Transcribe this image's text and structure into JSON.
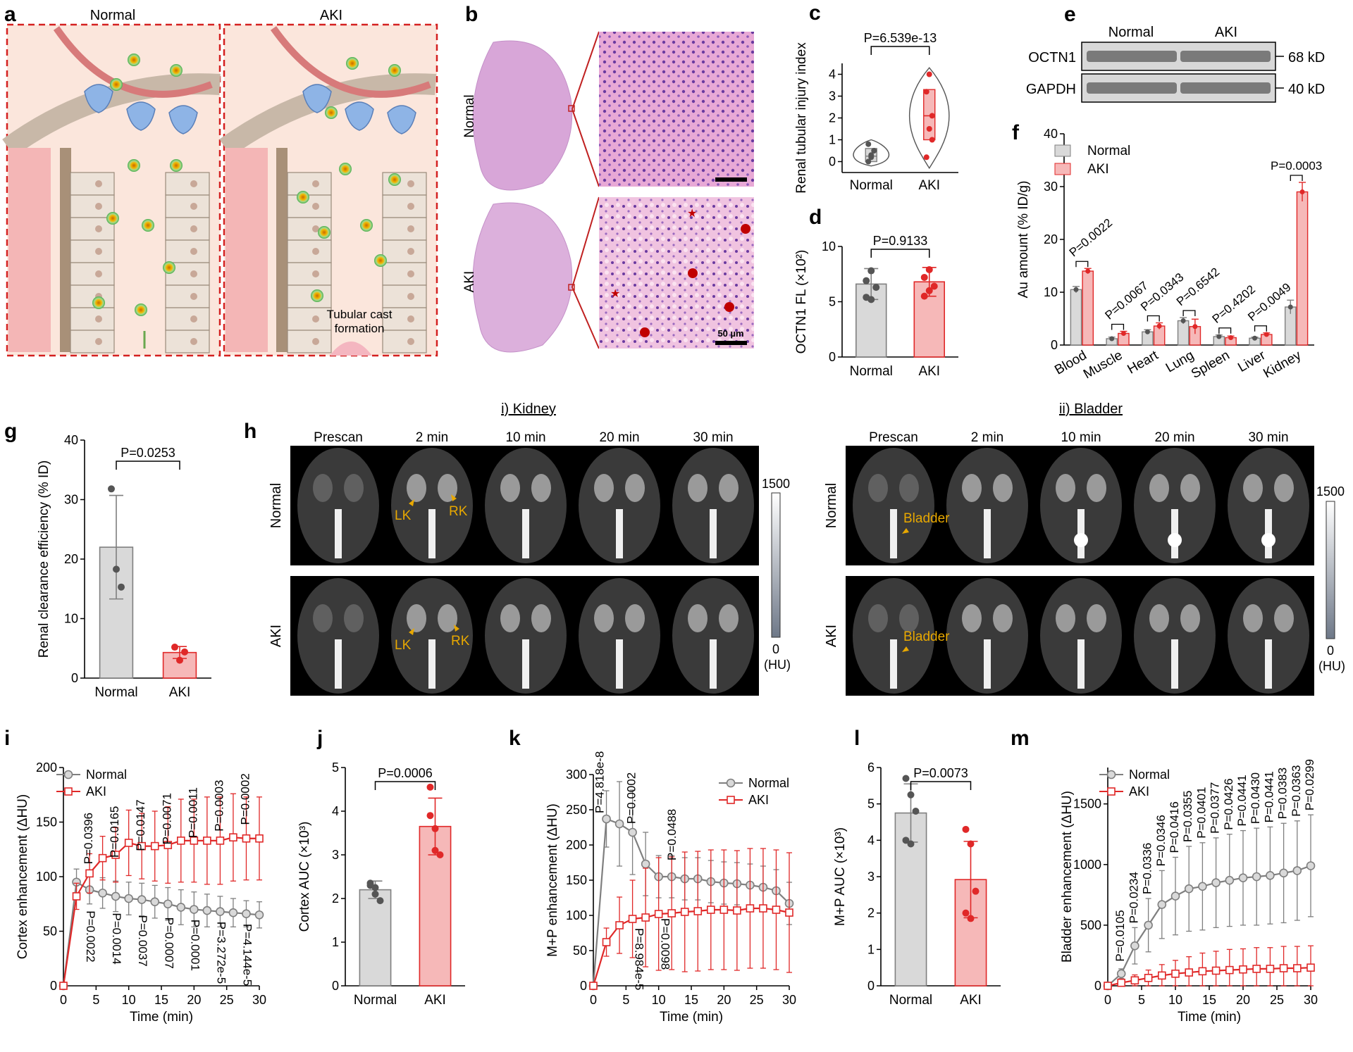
{
  "panel_letters": [
    "a",
    "b",
    "c",
    "d",
    "e",
    "f",
    "g",
    "h",
    "i",
    "j",
    "k",
    "l",
    "m"
  ],
  "colors": {
    "normal": "#7f7f7f",
    "normal_fill": "#d9d9d9",
    "aki": "#e02828",
    "aki_fill": "#f6b8b8",
    "gold": "#e8a800",
    "dash": "#d42020"
  },
  "panel_a": {
    "left_title": "Normal",
    "right_title": "AKI",
    "annotation": "Tubular cast\nformation"
  },
  "panel_b": {
    "row_labels": [
      "Normal",
      "AKI"
    ],
    "scale_bar": "50 µm"
  },
  "panel_e": {
    "headers": [
      "Normal",
      "AKI"
    ],
    "rows": [
      {
        "name": "OCTN1",
        "size": "68 kD"
      },
      {
        "name": "GAPDH",
        "size": "40 kD"
      }
    ]
  },
  "panel_h": {
    "kidney_title": "i) Kidney",
    "bladder_title": "ii) Bladder",
    "timepoints": [
      "Prescan",
      "2 min",
      "10 min",
      "20 min",
      "30 min"
    ],
    "row_labels": [
      "Normal",
      "AKI"
    ],
    "kidney_markers": [
      "LK",
      "RK"
    ],
    "bladder_marker": "Bladder",
    "colorbar_max": "1500",
    "colorbar_min": "0",
    "colorbar_unit": "(HU)"
  },
  "chart_data": [
    {
      "id": "c",
      "type": "violin",
      "ylabel": "Renal tubular injury index",
      "ylim": [
        -0.5,
        4.5
      ],
      "yticks": [
        0,
        1,
        2,
        3,
        4
      ],
      "categories": [
        "Normal",
        "AKI"
      ],
      "pvalue": "P=6.539e-13",
      "points": [
        [
          0,
          0.2,
          0.5,
          0.8,
          0.3
        ],
        [
          0.2,
          1.5,
          2.1,
          3.2,
          4.0,
          1.0
        ]
      ],
      "box": [
        [
          0,
          0.25,
          0.6
        ],
        [
          1.0,
          2.1,
          3.3
        ]
      ]
    },
    {
      "id": "d",
      "type": "bar",
      "ylabel": "OCTN1 FL (×10²)",
      "ylim": [
        0,
        10
      ],
      "yticks": [
        0,
        5,
        10
      ],
      "categories": [
        "Normal",
        "AKI"
      ],
      "means": [
        6.6,
        6.8
      ],
      "sd": [
        1.4,
        1.3
      ],
      "pvalue": "P=0.9133",
      "points": [
        [
          5.4,
          7.8,
          6.3,
          6.9,
          5.2
        ],
        [
          5.5,
          7.9,
          6.4,
          7.2,
          6.0
        ]
      ]
    },
    {
      "id": "f",
      "type": "grouped-bar",
      "ylabel": "Au amount (% ID/g)",
      "ylim": [
        0,
        40
      ],
      "yticks": [
        0,
        10,
        20,
        30,
        40
      ],
      "categories": [
        "Blood",
        "Muscle",
        "Heart",
        "Lung",
        "Spleen",
        "Liver",
        "Kidney"
      ],
      "series": [
        {
          "name": "Normal",
          "values": [
            10.5,
            1.2,
            2.5,
            4.6,
            1.6,
            1.3,
            7.2
          ],
          "sd": [
            0.6,
            0.3,
            0.4,
            0.6,
            0.3,
            0.2,
            1.3
          ]
        },
        {
          "name": "AKI",
          "values": [
            14.0,
            2.2,
            3.6,
            3.5,
            1.4,
            2.0,
            29.0
          ],
          "sd": [
            0.5,
            0.4,
            0.6,
            1.4,
            0.3,
            0.3,
            1.8
          ]
        }
      ],
      "pvalues": [
        "P=0.0022",
        "P=0.0067",
        "P=0.0343",
        "P=0.6542",
        "P=0.4202",
        "P=0.0049",
        "P=0.0003"
      ]
    },
    {
      "id": "g",
      "type": "bar",
      "ylabel": "Renal clearance efficiency (% ID)",
      "ylim": [
        0,
        40
      ],
      "yticks": [
        0,
        10,
        20,
        30,
        40
      ],
      "categories": [
        "Normal",
        "AKI"
      ],
      "means": [
        22.0,
        4.3
      ],
      "sd": [
        8.7,
        1.0
      ],
      "pvalue": "P=0.0253",
      "points": [
        [
          31.8,
          18.3,
          15.3
        ],
        [
          5.2,
          3.0,
          4.4
        ]
      ]
    },
    {
      "id": "i",
      "type": "line",
      "xlabel": "Time (min)",
      "ylabel": "Cortex enhancement (ΔHU)",
      "xlim": [
        0,
        30
      ],
      "ylim": [
        0,
        200
      ],
      "xticks": [
        0,
        5,
        10,
        15,
        20,
        25,
        30
      ],
      "yticks": [
        0,
        50,
        100,
        150,
        200
      ],
      "x": [
        0,
        2,
        4,
        6,
        8,
        10,
        12,
        14,
        16,
        18,
        20,
        22,
        24,
        26,
        28,
        30
      ],
      "series": [
        {
          "name": "Normal",
          "values": [
            0,
            95,
            88,
            85,
            82,
            80,
            79,
            77,
            75,
            72,
            70,
            69,
            68,
            67,
            66,
            65
          ],
          "sd": [
            0,
            12,
            13,
            14,
            14,
            15,
            15,
            15,
            15,
            16,
            16,
            15,
            14,
            13,
            12,
            12
          ]
        },
        {
          "name": "AKI",
          "values": [
            0,
            82,
            103,
            117,
            120,
            131,
            128,
            128,
            129,
            133,
            133,
            133,
            133,
            136,
            135,
            135
          ],
          "sd": [
            0,
            12,
            18,
            20,
            25,
            30,
            30,
            32,
            35,
            38,
            38,
            40,
            40,
            40,
            38,
            38
          ]
        }
      ],
      "pvalues_aki": [
        "P=0.0396",
        "P=0.0165",
        "P=0.0147",
        "P=0.0071",
        "P=0.0011",
        "P=0.0003",
        "P=0.0002"
      ],
      "pvalues_normal": [
        "P=0.0022",
        "P=0.0014",
        "P=0.0037",
        "P=0.0007",
        "P=0.0001",
        "P=3.272e-5",
        "P=4.144e-5"
      ]
    },
    {
      "id": "j",
      "type": "bar",
      "ylabel": "Cortex AUC (×10³)",
      "ylim": [
        0,
        5
      ],
      "yticks": [
        0,
        1,
        2,
        3,
        4,
        5
      ],
      "categories": [
        "Normal",
        "AKI"
      ],
      "means": [
        2.2,
        3.65
      ],
      "sd": [
        0.2,
        0.65
      ],
      "pvalue": "P=0.0006",
      "points": [
        [
          2.35,
          2.1,
          1.95,
          2.3,
          2.25
        ],
        [
          4.55,
          3.1,
          3.0,
          3.9,
          3.6
        ]
      ]
    },
    {
      "id": "k",
      "type": "line",
      "xlabel": "Time (min)",
      "ylabel": "M+P enhancement (ΔHU)",
      "xlim": [
        0,
        30
      ],
      "ylim": [
        0,
        300
      ],
      "xticks": [
        0,
        5,
        10,
        15,
        20,
        25,
        30
      ],
      "yticks": [
        0,
        50,
        100,
        150,
        200,
        250,
        300
      ],
      "x": [
        0,
        2,
        4,
        6,
        8,
        10,
        12,
        14,
        16,
        18,
        20,
        22,
        24,
        26,
        28,
        30
      ],
      "series": [
        {
          "name": "Normal",
          "values": [
            0,
            237,
            230,
            218,
            173,
            155,
            155,
            152,
            152,
            148,
            146,
            145,
            143,
            140,
            135,
            117
          ],
          "sd": [
            0,
            40,
            60,
            60,
            45,
            30,
            30,
            30,
            30,
            30,
            30,
            30,
            30,
            30,
            30,
            30
          ]
        },
        {
          "name": "AKI",
          "values": [
            0,
            62,
            86,
            95,
            97,
            102,
            103,
            105,
            106,
            108,
            108,
            107,
            110,
            110,
            108,
            104
          ],
          "sd": [
            0,
            20,
            40,
            55,
            70,
            80,
            80,
            85,
            85,
            85,
            85,
            85,
            85,
            85,
            85,
            85
          ]
        }
      ],
      "pvalues": [
        "P=4.818e-8",
        "P=8.984e-5",
        "P=0.0002",
        "P=0.0098",
        "P=0.0488"
      ]
    },
    {
      "id": "l",
      "type": "bar",
      "ylabel": "M+P AUC (×10³)",
      "ylim": [
        0,
        6
      ],
      "yticks": [
        0,
        1,
        2,
        3,
        4,
        5,
        6
      ],
      "categories": [
        "Normal",
        "AKI"
      ],
      "means": [
        4.75,
        2.92
      ],
      "sd": [
        0.8,
        1.05
      ],
      "pvalue": "P=0.0073",
      "points": [
        [
          5.7,
          5.25,
          4.8,
          4.0,
          3.9
        ],
        [
          4.3,
          3.9,
          2.6,
          2.0,
          1.85
        ]
      ]
    },
    {
      "id": "m",
      "type": "line",
      "xlabel": "Time (min)",
      "ylabel": "Bladder enhancement (ΔHU)",
      "xlim": [
        0,
        30
      ],
      "ylim": [
        0,
        1800
      ],
      "xticks": [
        0,
        5,
        10,
        15,
        20,
        25,
        30
      ],
      "yticks": [
        0,
        500,
        1000,
        1500
      ],
      "x": [
        0,
        2,
        4,
        6,
        8,
        10,
        12,
        14,
        16,
        18,
        20,
        22,
        24,
        26,
        28,
        30
      ],
      "series": [
        {
          "name": "Normal",
          "values": [
            0,
            100,
            330,
            500,
            670,
            740,
            800,
            820,
            850,
            870,
            890,
            900,
            910,
            930,
            950,
            990
          ],
          "sd": [
            0,
            40,
            150,
            220,
            280,
            320,
            350,
            360,
            370,
            380,
            390,
            400,
            400,
            410,
            410,
            420
          ]
        },
        {
          "name": "AKI",
          "values": [
            0,
            25,
            45,
            65,
            85,
            100,
            110,
            120,
            125,
            130,
            135,
            140,
            140,
            145,
            145,
            150
          ],
          "sd": [
            0,
            30,
            45,
            65,
            90,
            110,
            130,
            150,
            160,
            170,
            170,
            175,
            175,
            180,
            180,
            180
          ]
        }
      ],
      "pvalues": [
        "P=0.0105",
        "P=0.0234",
        "P=0.0336",
        "P=0.0346",
        "P=0.0416",
        "P=0.0355",
        "P=0.0401",
        "P=0.0377",
        "P=0.0426",
        "P=0.0441",
        "P=0.0430",
        "P=0.0441",
        "P=0.0383",
        "P=0.0363",
        "P=0.0299"
      ]
    }
  ]
}
